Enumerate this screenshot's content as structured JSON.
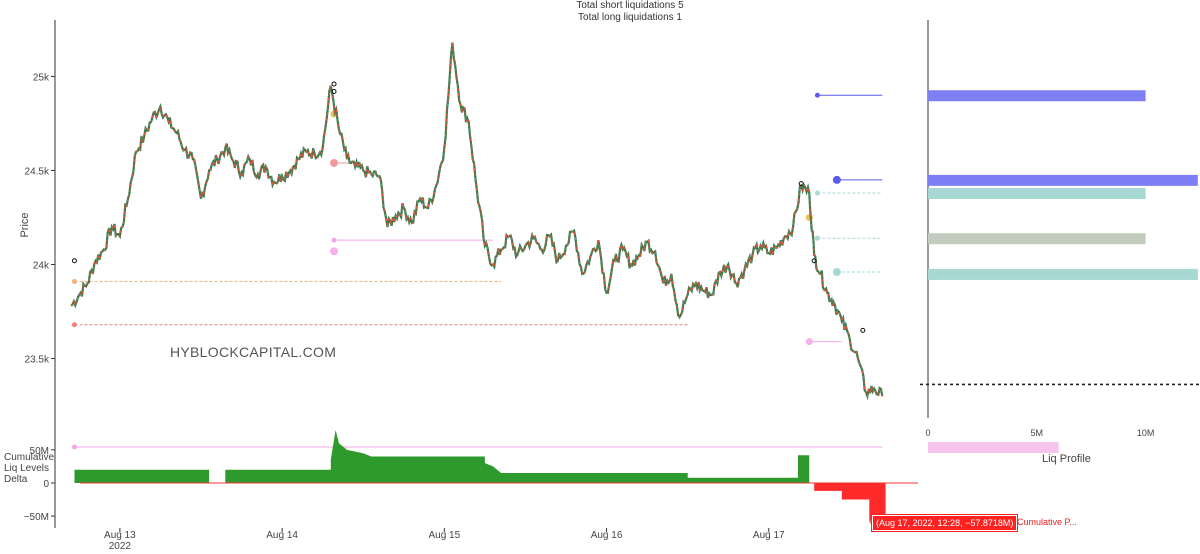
{
  "header": {
    "short_line": "Total short liquidations 5",
    "long_line": "Total long liquidations 1"
  },
  "watermark": "HYBLOCKCAPITAL.COM",
  "colors": {
    "candle_up": "#2e7d4f",
    "candle_down": "#e8553c",
    "delta_pos": "#2e9a2e",
    "delta_neg": "#ff2a2a",
    "profile_blue": "#7f7ff5",
    "profile_teal": "#a8d8d4",
    "profile_gray": "#c2ccbe",
    "profile_pink": "#f7c4ee"
  },
  "chart_data": [
    {
      "type": "line",
      "ylabel": "Price",
      "y_ticks": [
        "23.5k",
        "24k",
        "24.5k",
        "25k"
      ],
      "ylim": [
        23200,
        25300
      ],
      "x_ticks": [
        "Aug 13",
        "Aug 14",
        "Aug 15",
        "Aug 16",
        "Aug 17"
      ],
      "x_tick_sub": "2022",
      "xlim_day": [
        12.6,
        17.92
      ],
      "series": [
        {
          "values_xy": [
            [
              12.7,
              23780
            ],
            [
              12.75,
              23840
            ],
            [
              12.8,
              23900
            ],
            [
              12.85,
              24020
            ],
            [
              12.9,
              24080
            ],
            [
              12.95,
              24200
            ],
            [
              13.0,
              24150
            ],
            [
              13.05,
              24350
            ],
            [
              13.1,
              24600
            ],
            [
              13.15,
              24680
            ],
            [
              13.2,
              24780
            ],
            [
              13.25,
              24840
            ],
            [
              13.3,
              24760
            ],
            [
              13.35,
              24700
            ],
            [
              13.4,
              24610
            ],
            [
              13.45,
              24560
            ],
            [
              13.5,
              24350
            ],
            [
              13.55,
              24500
            ],
            [
              13.6,
              24560
            ],
            [
              13.65,
              24620
            ],
            [
              13.7,
              24550
            ],
            [
              13.75,
              24490
            ],
            [
              13.8,
              24560
            ],
            [
              13.85,
              24480
            ],
            [
              13.9,
              24520
            ],
            [
              13.95,
              24440
            ],
            [
              14.0,
              24470
            ],
            [
              14.05,
              24500
            ],
            [
              14.1,
              24560
            ],
            [
              14.15,
              24600
            ],
            [
              14.2,
              24590
            ],
            [
              14.25,
              24620
            ],
            [
              14.3,
              24950
            ],
            [
              14.35,
              24720
            ],
            [
              14.4,
              24560
            ],
            [
              14.45,
              24520
            ],
            [
              14.5,
              24500
            ],
            [
              14.55,
              24480
            ],
            [
              14.6,
              24470
            ],
            [
              14.65,
              24200
            ],
            [
              14.7,
              24260
            ],
            [
              14.75,
              24300
            ],
            [
              14.8,
              24220
            ],
            [
              14.85,
              24350
            ],
            [
              14.9,
              24300
            ],
            [
              14.95,
              24420
            ],
            [
              15.0,
              24620
            ],
            [
              15.05,
              25180
            ],
            [
              15.1,
              24850
            ],
            [
              15.15,
              24760
            ],
            [
              15.2,
              24400
            ],
            [
              15.25,
              24100
            ],
            [
              15.3,
              24000
            ],
            [
              15.35,
              24080
            ],
            [
              15.4,
              24150
            ],
            [
              15.45,
              24050
            ],
            [
              15.5,
              24100
            ],
            [
              15.55,
              24140
            ],
            [
              15.6,
              24080
            ],
            [
              15.65,
              24150
            ],
            [
              15.7,
              24020
            ],
            [
              15.75,
              24100
            ],
            [
              15.8,
              24180
            ],
            [
              15.85,
              23950
            ],
            [
              15.9,
              24040
            ],
            [
              15.95,
              24130
            ],
            [
              16.0,
              23850
            ],
            [
              16.05,
              24020
            ],
            [
              16.1,
              24080
            ],
            [
              16.15,
              24000
            ],
            [
              16.2,
              24050
            ],
            [
              16.25,
              24120
            ],
            [
              16.3,
              24070
            ],
            [
              16.35,
              23900
            ],
            [
              16.4,
              23950
            ],
            [
              16.45,
              23720
            ],
            [
              16.5,
              23840
            ],
            [
              16.55,
              23900
            ],
            [
              16.6,
              23860
            ],
            [
              16.65,
              23840
            ],
            [
              16.7,
              23960
            ],
            [
              16.75,
              24000
            ],
            [
              16.8,
              23900
            ],
            [
              16.85,
              23970
            ],
            [
              16.9,
              24050
            ],
            [
              16.95,
              24100
            ],
            [
              17.0,
              24060
            ],
            [
              17.05,
              24090
            ],
            [
              17.1,
              24150
            ],
            [
              17.15,
              24200
            ],
            [
              17.2,
              24420
            ],
            [
              17.25,
              24380
            ],
            [
              17.28,
              24050
            ],
            [
              17.32,
              23950
            ],
            [
              17.36,
              23850
            ],
            [
              17.4,
              23800
            ],
            [
              17.45,
              23700
            ],
            [
              17.5,
              23600
            ],
            [
              17.55,
              23500
            ],
            [
              17.6,
              23320
            ],
            [
              17.65,
              23340
            ],
            [
              17.7,
              23300
            ]
          ]
        }
      ]
    },
    {
      "type": "area",
      "ylabel": "Cumulative Liq Levels Delta",
      "y_ticks": [
        "50M",
        "0",
        "−50M"
      ],
      "ylim": [
        -68,
        80
      ],
      "series": [
        {
          "values_xy": [
            [
              12.6,
              0
            ],
            [
              12.72,
              0
            ],
            [
              12.72,
              20
            ],
            [
              13.55,
              20
            ],
            [
              13.55,
              0
            ],
            [
              13.65,
              0
            ],
            [
              13.65,
              20
            ],
            [
              14.3,
              20
            ],
            [
              14.3,
              35
            ],
            [
              14.33,
              80
            ],
            [
              14.35,
              60
            ],
            [
              14.4,
              50
            ],
            [
              14.5,
              45
            ],
            [
              14.55,
              40
            ],
            [
              15.25,
              40
            ],
            [
              15.25,
              30
            ],
            [
              15.3,
              25
            ],
            [
              15.35,
              15
            ],
            [
              16.5,
              15
            ],
            [
              16.5,
              8
            ],
            [
              17.18,
              8
            ],
            [
              17.18,
              42
            ],
            [
              17.25,
              42
            ],
            [
              17.25,
              0
            ],
            [
              17.28,
              0
            ],
            [
              17.28,
              -12
            ],
            [
              17.45,
              -12
            ],
            [
              17.45,
              -25
            ],
            [
              17.62,
              -25
            ],
            [
              17.62,
              -58
            ],
            [
              17.72,
              -58
            ],
            [
              17.72,
              0
            ],
            [
              17.92,
              0
            ]
          ]
        }
      ]
    },
    {
      "type": "bar",
      "title": "Liq Profile",
      "x_ticks": [
        "0",
        "5M",
        "10M"
      ],
      "xlim": [
        0,
        12.5
      ],
      "price_levels": [
        24900,
        24450,
        24380,
        24140,
        23950,
        23030
      ],
      "values": [
        10,
        12.4,
        10,
        10,
        12.4,
        6
      ]
    }
  ],
  "price_current": 23320,
  "annotation": {
    "tooltip": "(Aug 17, 2022, 12:28, −57.8718M)",
    "series_name": "Cumulative P..."
  }
}
